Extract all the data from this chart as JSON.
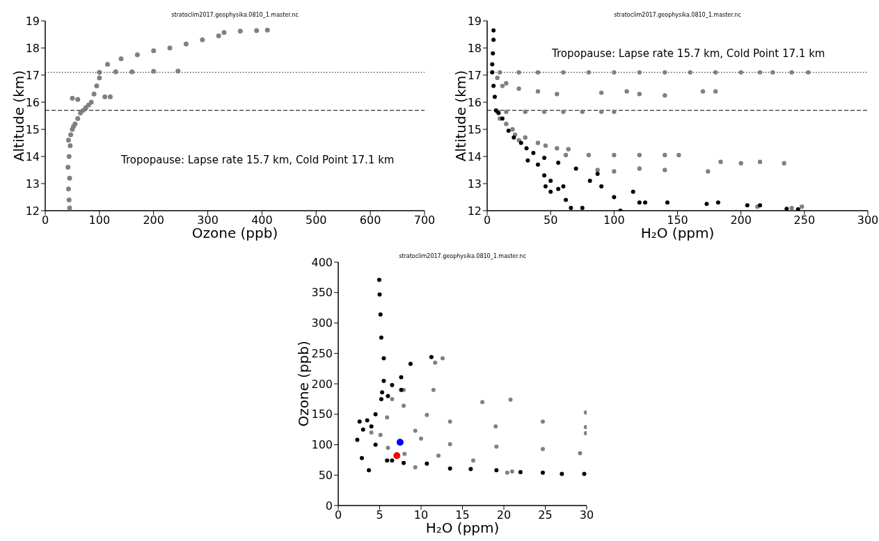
{
  "chart_data": [
    {
      "type": "scatter",
      "title": "stratoclim2017.geophysika.0810_1.master.nc",
      "xlabel": "Ozone (ppb)",
      "ylabel": "Altitude (km)",
      "marker": "circle",
      "xlim": [
        0,
        700
      ],
      "xticks": [
        0,
        100,
        200,
        300,
        400,
        500,
        600,
        700
      ],
      "ylim": [
        12,
        19
      ],
      "yticks": [
        12,
        13,
        14,
        15,
        16,
        17,
        18,
        19
      ],
      "ref_lines": [
        {
          "axis": "y",
          "value": 15.7,
          "color": "#000000",
          "line_style": "dashed"
        },
        {
          "axis": "y",
          "value": 17.1,
          "color": "#000000",
          "line_style": "dotted"
        }
      ],
      "annotations": [
        "Tropopause: Lapse rate 15.7 km, Cold Point 17.1 km"
      ],
      "series": [
        {
          "color": "#808080",
          "x": [
            45,
            44,
            43,
            45,
            42,
            44,
            46,
            43,
            47,
            50,
            52,
            55,
            60,
            65,
            70,
            75,
            80,
            85,
            60,
            50,
            90,
            110,
            120,
            95,
            100,
            100,
            130,
            160,
            200,
            245,
            115,
            140,
            170,
            200,
            230,
            260,
            290,
            320,
            330,
            360,
            390,
            410
          ],
          "values": [
            12.1,
            12.4,
            12.8,
            13.2,
            13.6,
            14.0,
            14.4,
            14.6,
            14.8,
            15.0,
            15.1,
            15.2,
            15.4,
            15.6,
            15.7,
            15.8,
            15.9,
            16.0,
            16.1,
            16.15,
            16.3,
            16.2,
            16.2,
            16.6,
            16.9,
            17.1,
            17.12,
            17.12,
            17.14,
            17.15,
            17.4,
            17.6,
            17.75,
            17.9,
            18.0,
            18.15,
            18.3,
            18.45,
            18.57,
            18.62,
            18.64,
            18.66
          ]
        }
      ]
    },
    {
      "type": "scatter",
      "title": "stratoclim2017.geophysika.0810_1.master.nc",
      "xlabel": "H₂O (ppm)",
      "ylabel": "Altitude (km)",
      "marker": "circle",
      "xlim": [
        0,
        300
      ],
      "xticks": [
        0,
        50,
        100,
        150,
        200,
        250,
        300
      ],
      "ylim": [
        12,
        19
      ],
      "yticks": [
        12,
        13,
        14,
        15,
        16,
        17,
        18,
        19
      ],
      "ref_lines": [
        {
          "axis": "y",
          "value": 15.7,
          "color": "#000000",
          "line_style": "dashed"
        },
        {
          "axis": "y",
          "value": 17.1,
          "color": "#000000",
          "line_style": "dotted"
        }
      ],
      "annotations": [
        "Tropopause: Lapse rate 15.7 km, Cold Point 17.1 km"
      ],
      "series": [
        {
          "color": "#808080",
          "x": [
            10,
            25,
            40,
            60,
            80,
            100,
            120,
            140,
            160,
            180,
            200,
            215,
            225,
            240,
            253,
            15,
            25,
            40,
            55,
            90,
            110,
            120,
            140,
            170,
            180,
            8,
            15,
            30,
            45,
            60,
            75,
            90,
            100,
            10,
            15,
            20,
            22,
            25,
            30,
            40,
            46,
            55,
            64,
            62,
            80,
            100,
            120,
            140,
            151,
            184,
            200,
            215,
            234,
            87,
            100,
            120,
            140,
            174,
            213,
            240,
            248,
            8,
            12
          ],
          "values": [
            17.1,
            17.1,
            17.1,
            17.1,
            17.1,
            17.1,
            17.1,
            17.1,
            17.1,
            17.1,
            17.1,
            17.1,
            17.1,
            17.1,
            17.1,
            16.7,
            16.5,
            16.4,
            16.3,
            16.35,
            16.4,
            16.3,
            16.25,
            16.4,
            16.4,
            15.65,
            15.65,
            15.65,
            15.65,
            15.65,
            15.65,
            15.65,
            15.65,
            15.4,
            15.2,
            15.0,
            14.8,
            14.6,
            14.7,
            14.5,
            14.4,
            14.3,
            14.27,
            14.05,
            14.05,
            14.05,
            14.05,
            14.05,
            14.05,
            13.8,
            13.75,
            13.8,
            13.75,
            13.5,
            13.45,
            13.55,
            13.5,
            13.45,
            12.15,
            12.1,
            12.15,
            16.9,
            16.6
          ]
        },
        {
          "color": "#000000",
          "x": [
            5,
            5,
            4.5,
            4,
            4,
            5,
            6,
            7,
            9,
            12,
            16.8,
            21,
            26.7,
            31,
            36.4,
            45,
            56,
            70,
            87,
            32,
            40,
            45,
            46,
            50,
            56,
            62,
            66,
            75,
            81,
            90,
            100,
            115,
            120,
            124.5,
            142,
            173,
            182,
            205,
            215,
            236,
            245,
            105,
            60,
            50
          ],
          "values": [
            18.65,
            18.3,
            17.8,
            17.4,
            17.1,
            16.6,
            16.2,
            15.7,
            15.6,
            15.4,
            14.95,
            14.7,
            14.5,
            14.3,
            14.13,
            13.95,
            13.77,
            13.55,
            13.36,
            13.85,
            13.7,
            13.3,
            12.9,
            12.7,
            12.8,
            12.4,
            12.1,
            12.1,
            13.1,
            12.9,
            12.5,
            12.7,
            12.3,
            12.3,
            12.3,
            12.25,
            12.3,
            12.2,
            12.2,
            12.07,
            12.05,
            12.0,
            12.9,
            13.1
          ]
        }
      ]
    },
    {
      "type": "scatter",
      "title": "stratoclim2017.geophysika.0810_1.master.nc",
      "xlabel": "H₂O (ppm)",
      "ylabel": "Ozone (ppb)",
      "marker": "circle",
      "xlim": [
        0,
        30
      ],
      "xticks": [
        0,
        5,
        10,
        15,
        20,
        25,
        30
      ],
      "ylim": [
        0,
        400
      ],
      "yticks": [
        0,
        50,
        100,
        150,
        200,
        250,
        300,
        350,
        400
      ],
      "series": [
        {
          "color": "#808080",
          "x": [
            4,
            5.1,
            5.9,
            6.5,
            7.9,
            9.3,
            10.7,
            11.5,
            11.7,
            12.6,
            13.5,
            17.4,
            20.8,
            19,
            24.7,
            29.9,
            29.9,
            29.9,
            29.2,
            24.7,
            19.1,
            13.5,
            16.3,
            12.1,
            9.3,
            21.0,
            20.4,
            7.9,
            6,
            8,
            10
          ],
          "values": [
            120,
            116,
            145,
            175,
            190,
            123,
            149,
            190,
            235,
            242,
            138,
            170,
            174,
            130,
            138,
            153,
            129,
            119,
            86,
            93,
            97,
            101,
            74,
            82,
            63,
            56,
            54,
            164,
            95,
            85,
            110
          ]
        },
        {
          "color": "#000000",
          "x": [
            4.95,
            5.0,
            5.1,
            5.2,
            5.5,
            5.5,
            5.3,
            2.3,
            2.58,
            3,
            3.5,
            4,
            4.5,
            5.2,
            6,
            7.6,
            6.5,
            7.6,
            8.73,
            11.25,
            2.85,
            3.7,
            4.5,
            5.9,
            6.5,
            7.9,
            10.7,
            13.5,
            16,
            19.1,
            22,
            24.7,
            27,
            29.7
          ],
          "values": [
            371,
            347,
            314,
            276,
            242,
            205,
            186,
            108,
            138,
            125,
            140,
            130,
            150,
            175,
            180,
            190,
            198,
            211,
            233,
            244,
            78,
            58,
            100,
            74,
            74,
            70,
            69,
            61,
            60,
            58,
            55,
            54,
            52,
            52
          ]
        },
        {
          "color": "#0000ff",
          "x": [
            7.47
          ],
          "values": [
            104
          ]
        },
        {
          "color": "#ff0000",
          "x": [
            7.08
          ],
          "values": [
            82
          ]
        }
      ]
    }
  ]
}
